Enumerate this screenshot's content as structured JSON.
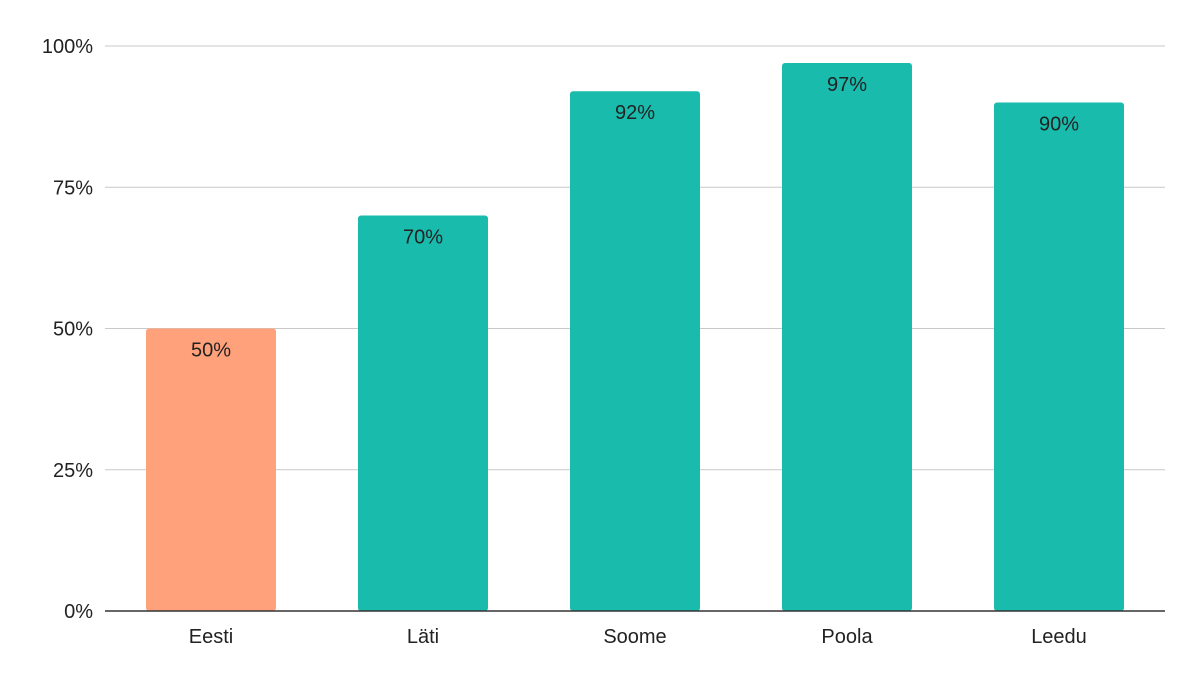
{
  "colors": {
    "highlight": "#FFA17A",
    "default": "#19BBAC",
    "grid": "#C9C9C9",
    "axis": "#333333",
    "text": "#222222",
    "background": "#FFFFFF"
  },
  "chart_data": {
    "type": "bar",
    "title": "",
    "xlabel": "",
    "ylabel": "",
    "categories": [
      "Eesti",
      "Läti",
      "Soome",
      "Poola",
      "Leedu"
    ],
    "values": [
      50,
      70,
      92,
      97,
      90
    ],
    "data_labels": [
      "50%",
      "70%",
      "92%",
      "97%",
      "90%"
    ],
    "highlighted_category": "Eesti",
    "ylim": [
      0,
      100
    ],
    "yticks": [
      0,
      25,
      50,
      75,
      100
    ],
    "ytick_labels": [
      "0%",
      "25%",
      "50%",
      "75%",
      "100%"
    ],
    "grid": true,
    "legend": "none",
    "data_label_position": "inside-top"
  }
}
